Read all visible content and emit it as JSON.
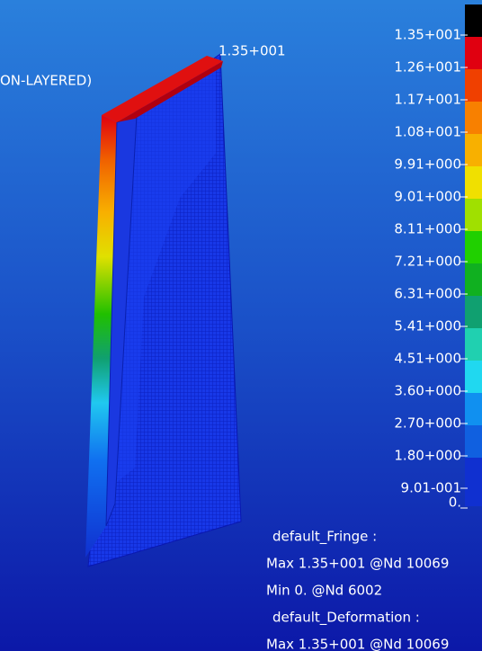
{
  "model_label": "1.35+001",
  "title_fragment": "ON-LAYERED)",
  "legend": [
    {
      "label": "1.35+001",
      "color": "#000000"
    },
    {
      "label": "1.26+001",
      "color": "#e00010"
    },
    {
      "label": "1.17+001",
      "color": "#f04000"
    },
    {
      "label": "1.08+001",
      "color": "#f88000"
    },
    {
      "label": "9.91+000",
      "color": "#f8b000"
    },
    {
      "label": "9.01+000",
      "color": "#f0e000"
    },
    {
      "label": "8.11+000",
      "color": "#a0e000"
    },
    {
      "label": "7.21+000",
      "color": "#20d000"
    },
    {
      "label": "6.31+000",
      "color": "#10b020"
    },
    {
      "label": "5.41+000",
      "color": "#10a070"
    },
    {
      "label": "4.51+000",
      "color": "#20d0b0"
    },
    {
      "label": "3.60+000",
      "color": "#20d8f0"
    },
    {
      "label": "2.70+000",
      "color": "#1090f0"
    },
    {
      "label": "1.80+000",
      "color": "#1060e0"
    },
    {
      "label": "9.01-001",
      "color": "#1030d0"
    },
    {
      "label": "0.",
      "color": "#1030d0"
    }
  ],
  "info": [
    "default_Fringe :",
    "Max 1.35+001 @Nd 10069",
    "Min 0. @Nd 6002",
    "default_Deformation :",
    "Max 1.35+001 @Nd 10069"
  ]
}
